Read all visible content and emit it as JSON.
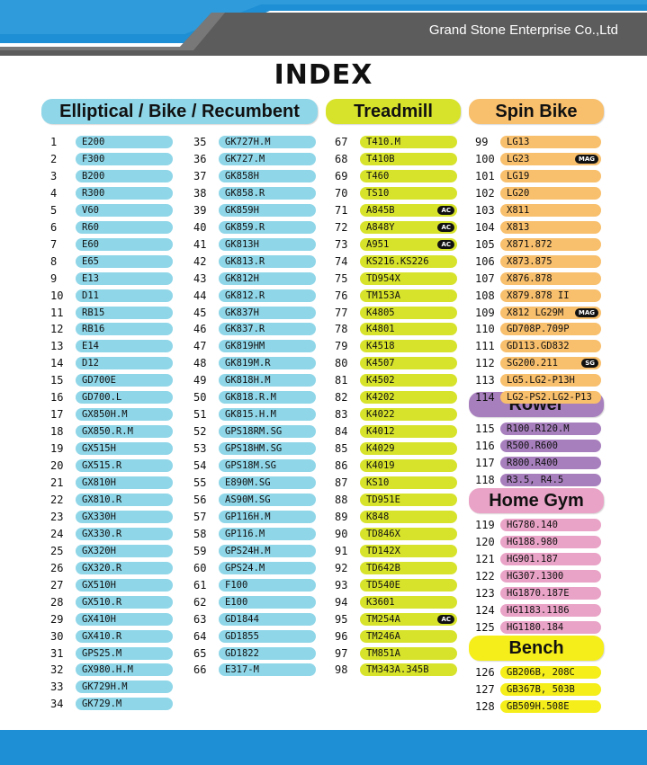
{
  "header": {
    "company": "Grand Stone Enterprise Co.,Ltd"
  },
  "title": "INDEX",
  "colors": {
    "blue": "#8fd6e8",
    "green": "#d7e32a",
    "orange": "#f8bf6c",
    "purple": "#a77fbd",
    "pink": "#e9a3c6",
    "yellow": "#f5ee1a",
    "banner_blue": "#1e8fd4"
  },
  "sections": {
    "elliptical": {
      "title": "Elliptical / Bike / Recumbent"
    },
    "treadmill": {
      "title": "Treadmill"
    },
    "spin": {
      "title": "Spin Bike"
    },
    "rower": {
      "title": "Rower"
    },
    "homegym": {
      "title": "Home Gym"
    },
    "bench": {
      "title": "Bench"
    }
  },
  "columns": {
    "ebr1": [
      {
        "num": "1",
        "name": "E200"
      },
      {
        "num": "2",
        "name": "F300"
      },
      {
        "num": "3",
        "name": "B200"
      },
      {
        "num": "4",
        "name": "R300"
      },
      {
        "num": "5",
        "name": "V60"
      },
      {
        "num": "6",
        "name": "R60"
      },
      {
        "num": "7",
        "name": "E60"
      },
      {
        "num": "8",
        "name": "E65"
      },
      {
        "num": "9",
        "name": "E13"
      },
      {
        "num": "10",
        "name": "D11"
      },
      {
        "num": "11",
        "name": "RB15"
      },
      {
        "num": "12",
        "name": "RB16"
      },
      {
        "num": "13",
        "name": "E14"
      },
      {
        "num": "14",
        "name": "D12"
      },
      {
        "num": "15",
        "name": "GD700E"
      },
      {
        "num": "16",
        "name": "GD700.L"
      },
      {
        "num": "17",
        "name": "GX850H.M"
      },
      {
        "num": "18",
        "name": "GX850.R.M"
      },
      {
        "num": "19",
        "name": "GX515H"
      },
      {
        "num": "20",
        "name": "GX515.R"
      },
      {
        "num": "21",
        "name": "GX810H"
      },
      {
        "num": "22",
        "name": "GX810.R"
      },
      {
        "num": "23",
        "name": "GX330H"
      },
      {
        "num": "24",
        "name": "GX330.R"
      },
      {
        "num": "25",
        "name": "GX320H"
      },
      {
        "num": "26",
        "name": "GX320.R"
      },
      {
        "num": "27",
        "name": "GX510H"
      },
      {
        "num": "28",
        "name": "GX510.R"
      },
      {
        "num": "29",
        "name": "GX410H"
      },
      {
        "num": "30",
        "name": "GX410.R"
      },
      {
        "num": "31",
        "name": "GPS25.M"
      },
      {
        "num": "32",
        "name": "GX980.H.M"
      },
      {
        "num": "33",
        "name": "GK729H.M"
      },
      {
        "num": "34",
        "name": "GK729.M"
      }
    ],
    "ebr2": [
      {
        "num": "35",
        "name": "GK727H.M"
      },
      {
        "num": "36",
        "name": "GK727.M"
      },
      {
        "num": "37",
        "name": "GK858H"
      },
      {
        "num": "38",
        "name": "GK858.R"
      },
      {
        "num": "39",
        "name": "GK859H"
      },
      {
        "num": "40",
        "name": "GK859.R"
      },
      {
        "num": "41",
        "name": "GK813H"
      },
      {
        "num": "42",
        "name": "GK813.R"
      },
      {
        "num": "43",
        "name": "GK812H"
      },
      {
        "num": "44",
        "name": "GK812.R"
      },
      {
        "num": "45",
        "name": "GK837H"
      },
      {
        "num": "46",
        "name": "GK837.R"
      },
      {
        "num": "47",
        "name": "GK819HM"
      },
      {
        "num": "48",
        "name": "GK819M.R"
      },
      {
        "num": "49",
        "name": "GK818H.M"
      },
      {
        "num": "50",
        "name": "GK818.R.M"
      },
      {
        "num": "51",
        "name": "GK815.H.M"
      },
      {
        "num": "52",
        "name": "GPS18RM.SG"
      },
      {
        "num": "53",
        "name": "GPS18HM.SG"
      },
      {
        "num": "54",
        "name": "GPS18M.SG"
      },
      {
        "num": "55",
        "name": "E890M.SG"
      },
      {
        "num": "56",
        "name": "AS90M.SG"
      },
      {
        "num": "57",
        "name": "GP116H.M"
      },
      {
        "num": "58",
        "name": "GP116.M"
      },
      {
        "num": "59",
        "name": "GPS24H.M"
      },
      {
        "num": "60",
        "name": "GPS24.M"
      },
      {
        "num": "61",
        "name": "F100"
      },
      {
        "num": "62",
        "name": "E100"
      },
      {
        "num": "63",
        "name": "GD1844"
      },
      {
        "num": "64",
        "name": "GD1855"
      },
      {
        "num": "65",
        "name": "GD1822"
      },
      {
        "num": "66",
        "name": "E317-M"
      }
    ],
    "treadmill": [
      {
        "num": "67",
        "name": "T410.M"
      },
      {
        "num": "68",
        "name": "T410B"
      },
      {
        "num": "69",
        "name": "T460"
      },
      {
        "num": "70",
        "name": "TS10"
      },
      {
        "num": "71",
        "name": "A845B",
        "tag": "AC"
      },
      {
        "num": "72",
        "name": "A848Y",
        "tag": "AC"
      },
      {
        "num": "73",
        "name": "A951",
        "tag": "AC"
      },
      {
        "num": "74",
        "name": "KS216.KS226"
      },
      {
        "num": "75",
        "name": "TD954X"
      },
      {
        "num": "76",
        "name": "TM153A"
      },
      {
        "num": "77",
        "name": "K4805"
      },
      {
        "num": "78",
        "name": "K4801"
      },
      {
        "num": "79",
        "name": "K4518"
      },
      {
        "num": "80",
        "name": "K4507"
      },
      {
        "num": "81",
        "name": "K4502"
      },
      {
        "num": "82",
        "name": "K4202"
      },
      {
        "num": "83",
        "name": "K4022"
      },
      {
        "num": "84",
        "name": "K4012"
      },
      {
        "num": "85",
        "name": "K4029"
      },
      {
        "num": "86",
        "name": "K4019"
      },
      {
        "num": "87",
        "name": "KS10"
      },
      {
        "num": "88",
        "name": "TD951E"
      },
      {
        "num": "89",
        "name": "K848"
      },
      {
        "num": "90",
        "name": "TD846X"
      },
      {
        "num": "91",
        "name": "TD142X"
      },
      {
        "num": "92",
        "name": "TD642B"
      },
      {
        "num": "93",
        "name": "TD540E"
      },
      {
        "num": "94",
        "name": "K3601"
      },
      {
        "num": "95",
        "name": "TM254A",
        "tag": "AC"
      },
      {
        "num": "96",
        "name": "TM246A"
      },
      {
        "num": "97",
        "name": "TM851A"
      },
      {
        "num": "98",
        "name": "TM343A.345B"
      }
    ],
    "spin": [
      {
        "num": "99",
        "name": "LG13"
      },
      {
        "num": "100",
        "name": "LG23",
        "tag": "MAG"
      },
      {
        "num": "101",
        "name": "LG19"
      },
      {
        "num": "102",
        "name": "LG20"
      },
      {
        "num": "103",
        "name": "X811"
      },
      {
        "num": "104",
        "name": "X813"
      },
      {
        "num": "105",
        "name": "X871.872"
      },
      {
        "num": "106",
        "name": "X873.875"
      },
      {
        "num": "107",
        "name": "X876.878"
      },
      {
        "num": "108",
        "name": "X879.878 II"
      },
      {
        "num": "109",
        "name": "X812  LG29M",
        "tag": "MAG"
      },
      {
        "num": "110",
        "name": "GD708P.709P"
      },
      {
        "num": "111",
        "name": "GD113.GD832"
      },
      {
        "num": "112",
        "name": "SG200.211",
        "tag": "SG"
      },
      {
        "num": "113",
        "name": "LG5.LG2-P13H"
      },
      {
        "num": "114",
        "name": "LG2-PS2.LG2-P13"
      }
    ],
    "rower": [
      {
        "num": "115",
        "name": "R100.R120.M"
      },
      {
        "num": "116",
        "name": "R500.R600"
      },
      {
        "num": "117",
        "name": "R800.R400"
      },
      {
        "num": "118",
        "name": "R3.5, R4.5"
      }
    ],
    "homegym": [
      {
        "num": "119",
        "name": "HG780.140"
      },
      {
        "num": "120",
        "name": "HG188.980"
      },
      {
        "num": "121",
        "name": "HG901.187"
      },
      {
        "num": "122",
        "name": "HG307.1300"
      },
      {
        "num": "123",
        "name": "HG1870.187E"
      },
      {
        "num": "124",
        "name": "HG1183.1186"
      },
      {
        "num": "125",
        "name": "HG1180.184"
      }
    ],
    "bench": [
      {
        "num": "126",
        "name": "GB206B, 208C"
      },
      {
        "num": "127",
        "name": "GB367B, 503B"
      },
      {
        "num": "128",
        "name": "GB509H.508E"
      }
    ]
  }
}
